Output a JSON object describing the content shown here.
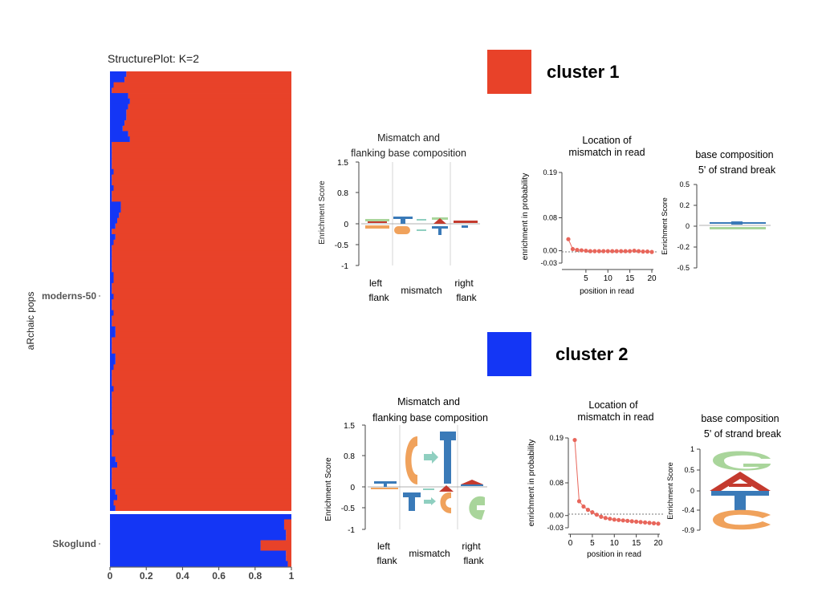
{
  "colors": {
    "red": "#e84229",
    "blue": "#1436f5",
    "point": "#e8665b",
    "logo_red": "#c43a2e",
    "logo_blue": "#3a7ab8",
    "logo_orange": "#f0a25c",
    "logo_green": "#a9d59b",
    "arrow": "#8fcfc0"
  },
  "structure": {
    "title": "StructurePlot: K=2",
    "ylabel": "aRchaic pops",
    "groups": [
      "moderns-50",
      "Skoglund"
    ],
    "xticks": [
      "0",
      "0.2",
      "0.4",
      "0.6",
      "0.8",
      "1"
    ]
  },
  "clusters": [
    {
      "label": "cluster 1",
      "logo_title": [
        "Mismatch and",
        "flanking base composition"
      ],
      "logo_ylabel": "Enrichment Score",
      "logo_yticks": [
        "1.5",
        "0.8",
        "0",
        "-0.5",
        "-1"
      ],
      "logo_bottom": {
        "left": [
          "left",
          "flank"
        ],
        "mid": "mismatch",
        "right": [
          "right",
          "flank"
        ]
      },
      "loc_title": [
        "Location of",
        "mismatch in read"
      ],
      "loc_ylabel": "enrichment in probability",
      "loc_xlabel": "position in read",
      "loc_yticks": [
        "0.19",
        "0.08",
        "0.00",
        "-0.03"
      ],
      "loc_xticks": [
        "5",
        "10",
        "15",
        "20"
      ],
      "base_title": [
        "base composition",
        "5' of  strand break"
      ],
      "base_ylabel": "Enrichment Score",
      "base_yticks": [
        "0.5",
        "0.2",
        "0",
        "-0.2",
        "-0.5"
      ]
    },
    {
      "label": "cluster 2",
      "logo_title": [
        "Mismatch and",
        "flanking base composition"
      ],
      "logo_ylabel": "Enrichment Score",
      "logo_yticks": [
        "1.5",
        "0.8",
        "0",
        "-0.5",
        "-1"
      ],
      "logo_bottom": {
        "left": [
          "left",
          "flank"
        ],
        "mid": "mismatch",
        "right": [
          "right",
          "flank"
        ]
      },
      "loc_title": [
        "Location of",
        "mismatch in read"
      ],
      "loc_ylabel": "enrichment in probability",
      "loc_xlabel": "position in read",
      "loc_yticks": [
        "0.19",
        "0.08",
        "0.00",
        "-0.03"
      ],
      "loc_xticks": [
        "0",
        "5",
        "10",
        "15",
        "20"
      ],
      "base_title": [
        "base composition",
        "5' of  strand break"
      ],
      "base_ylabel": "Enrichment Score",
      "base_yticks": [
        "1",
        "0.5",
        "0",
        "-0.4",
        "-0.9"
      ]
    }
  ],
  "chart_data": [
    {
      "type": "bar",
      "title": "StructurePlot: K=2",
      "ylabel": "aRchaic pops",
      "xlim": [
        0,
        1
      ],
      "groups": [
        {
          "name": "moderns-50",
          "cluster2_membership": [
            0.09,
            0.08,
            0.02,
            0.01,
            0.1,
            0.11,
            0.1,
            0.09,
            0.09,
            0.08,
            0.07,
            0.1,
            0.11,
            0.01,
            0.01,
            0.01,
            0.01,
            0.01,
            0.02,
            0.01,
            0.01,
            0.02,
            0.01,
            0.01,
            0.06,
            0.06,
            0.05,
            0.04,
            0.03,
            0.01,
            0.03,
            0.02,
            0.01,
            0.01,
            0.01,
            0.01,
            0.01,
            0.02,
            0.02,
            0.01,
            0.01,
            0.02,
            0.01,
            0.01,
            0.02,
            0.01,
            0.01,
            0.03,
            0.03,
            0.01,
            0.01,
            0.01,
            0.03,
            0.03,
            0.02,
            0.01,
            0.01,
            0.01,
            0.02,
            0.01,
            0.01,
            0.01,
            0.01,
            0.01,
            0.01,
            0.01,
            0.02,
            0.01,
            0.01,
            0.01,
            0.01,
            0.03,
            0.04,
            0.01,
            0.01,
            0.01,
            0.01,
            0.03,
            0.04,
            0.02,
            0.03
          ]
        },
        {
          "name": "Skoglund",
          "cluster2_membership": [
            1.0,
            0.96,
            0.96,
            0.97,
            0.97,
            0.83,
            0.83,
            0.97,
            0.97,
            0.98
          ]
        }
      ]
    },
    {
      "type": "line",
      "title": "Location of mismatch in read",
      "cluster": "cluster 1",
      "xlabel": "position in read",
      "ylabel": "enrichment in probability",
      "ylim": [
        -0.03,
        0.19
      ],
      "x": [
        1,
        2,
        3,
        4,
        5,
        6,
        7,
        8,
        9,
        10,
        11,
        12,
        13,
        14,
        15,
        16,
        17,
        18,
        19,
        20
      ],
      "y": [
        0.028,
        0.004,
        0.002,
        0.001,
        0.0,
        -0.001,
        -0.001,
        -0.001,
        -0.001,
        -0.001,
        -0.001,
        -0.001,
        -0.001,
        -0.001,
        -0.001,
        0.0,
        -0.001,
        -0.002,
        -0.002,
        -0.003
      ]
    },
    {
      "type": "line",
      "title": "Location of mismatch in read",
      "cluster": "cluster 2",
      "xlabel": "position in read",
      "ylabel": "enrichment in probability",
      "ylim": [
        -0.03,
        0.19
      ],
      "x": [
        1,
        2,
        3,
        4,
        5,
        6,
        7,
        8,
        9,
        10,
        11,
        12,
        13,
        14,
        15,
        16,
        17,
        18,
        19,
        20
      ],
      "y": [
        0.185,
        0.035,
        0.022,
        0.014,
        0.008,
        0.002,
        -0.003,
        -0.006,
        -0.008,
        -0.01,
        -0.011,
        -0.012,
        -0.013,
        -0.014,
        -0.015,
        -0.016,
        -0.017,
        -0.018,
        -0.019,
        -0.02
      ]
    }
  ]
}
